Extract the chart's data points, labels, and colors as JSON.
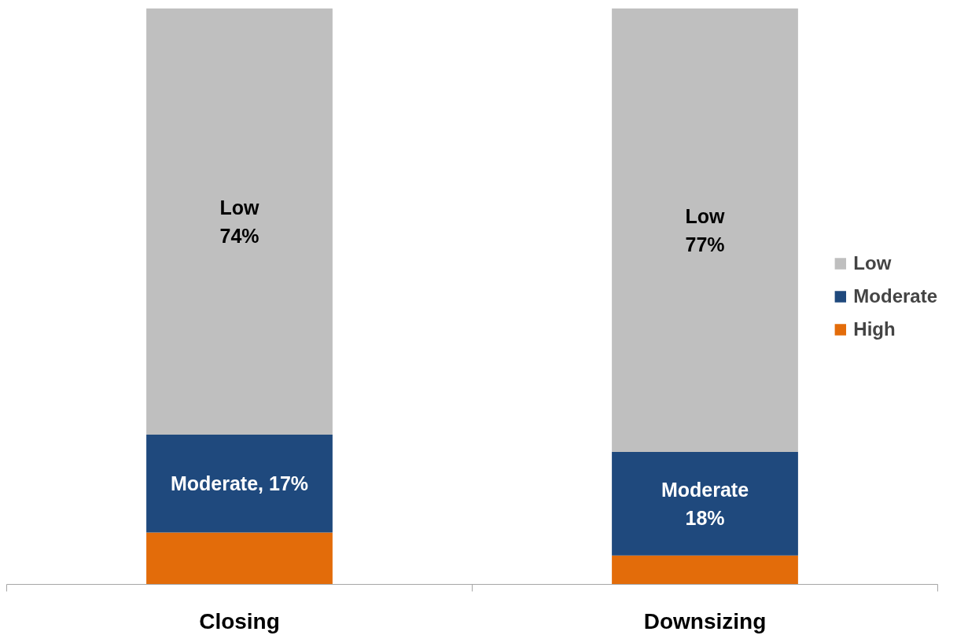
{
  "chart_data": {
    "type": "bar",
    "stacked": true,
    "categories": [
      "Closing",
      "Downsizing"
    ],
    "series": [
      {
        "name": "High",
        "color": "#e36c0a",
        "values": [
          9,
          5
        ],
        "value_labels": [
          null,
          null
        ]
      },
      {
        "name": "Moderate",
        "color": "#1f497d",
        "values": [
          17,
          18
        ],
        "value_labels": [
          "Moderate, 17%",
          "Moderate\n18%"
        ]
      },
      {
        "name": "Low",
        "color": "#bfbfbf",
        "values": [
          74,
          77
        ],
        "value_labels": [
          "Low\n74%",
          "Low\n77%"
        ]
      }
    ],
    "ylim": [
      0,
      100
    ],
    "legend": "right"
  }
}
